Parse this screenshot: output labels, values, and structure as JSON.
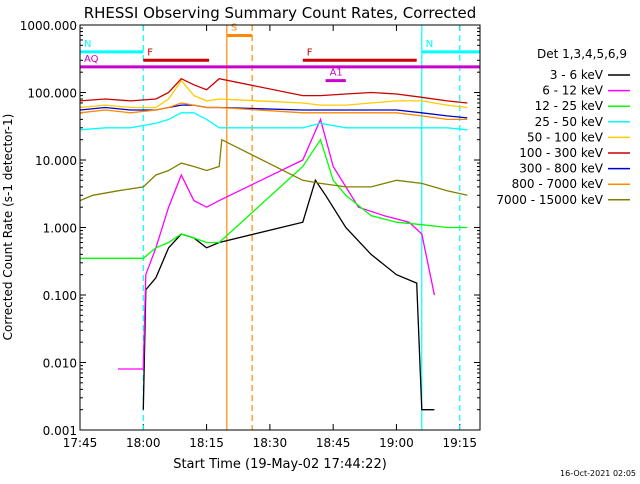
{
  "chart_data": {
    "type": "line",
    "title": "RHESSI Observing Summary Count Rates, Corrected",
    "xlabel": "Start Time (19-May-02 17:44:22)",
    "ylabel": "Corrected Count Rate (s-1 detector-1)",
    "yscale": "log",
    "ylim": [
      0.001,
      1000
    ],
    "xlim_minutes": [
      17.75,
      19.33
    ],
    "x_ticks": [
      "17:45",
      "18:00",
      "18:15",
      "18:30",
      "18:45",
      "19:00",
      "19:15"
    ],
    "y_ticks": [
      "1000.000",
      "100.000",
      "10.000",
      "1.000",
      "0.100",
      "0.010",
      "0.001"
    ],
    "legend_title": "Det 1,3,4,5,6,9",
    "legend_placement": "right",
    "footer_date": "16-Oct-2021 02:05",
    "series": [
      {
        "name": "3 - 6 keV",
        "color": "#000000",
        "points": [
          [
            18.0,
            0.002
          ],
          [
            18.01,
            0.12
          ],
          [
            18.05,
            0.18
          ],
          [
            18.1,
            0.5
          ],
          [
            18.15,
            0.8
          ],
          [
            18.2,
            0.7
          ],
          [
            18.25,
            0.5
          ],
          [
            18.3,
            0.6
          ],
          [
            18.63,
            1.2
          ],
          [
            18.68,
            5.0
          ],
          [
            18.72,
            3.0
          ],
          [
            18.8,
            1.0
          ],
          [
            18.9,
            0.4
          ],
          [
            19.0,
            0.2
          ],
          [
            19.08,
            0.15
          ],
          [
            19.1,
            0.002
          ],
          [
            19.15,
            0.002
          ]
        ]
      },
      {
        "name": "6 - 12 keV",
        "color": "#ff00ff",
        "points": [
          [
            17.9,
            0.008
          ],
          [
            18.0,
            0.008
          ],
          [
            18.01,
            0.2
          ],
          [
            18.05,
            0.5
          ],
          [
            18.1,
            2.0
          ],
          [
            18.15,
            6.0
          ],
          [
            18.2,
            2.5
          ],
          [
            18.25,
            2.0
          ],
          [
            18.3,
            2.5
          ],
          [
            18.63,
            10
          ],
          [
            18.7,
            40
          ],
          [
            18.75,
            8
          ],
          [
            18.85,
            2.0
          ],
          [
            18.95,
            1.5
          ],
          [
            19.05,
            1.2
          ],
          [
            19.1,
            0.8
          ],
          [
            19.15,
            0.1
          ]
        ]
      },
      {
        "name": "12 - 25 keV",
        "color": "#00ff00",
        "points": [
          [
            17.75,
            0.35
          ],
          [
            17.85,
            0.35
          ],
          [
            17.95,
            0.35
          ],
          [
            18.0,
            0.35
          ],
          [
            18.05,
            0.5
          ],
          [
            18.1,
            0.6
          ],
          [
            18.15,
            0.8
          ],
          [
            18.2,
            0.7
          ],
          [
            18.25,
            0.6
          ],
          [
            18.3,
            0.6
          ],
          [
            18.63,
            8
          ],
          [
            18.7,
            20
          ],
          [
            18.75,
            5
          ],
          [
            18.8,
            3
          ],
          [
            18.9,
            1.5
          ],
          [
            19.0,
            1.2
          ],
          [
            19.1,
            1.1
          ],
          [
            19.2,
            1.0
          ],
          [
            19.28,
            1.0
          ]
        ]
      },
      {
        "name": "25 - 50 keV",
        "color": "#00ffff",
        "points": [
          [
            17.75,
            28
          ],
          [
            17.85,
            30
          ],
          [
            17.95,
            30
          ],
          [
            18.05,
            35
          ],
          [
            18.1,
            40
          ],
          [
            18.15,
            50
          ],
          [
            18.2,
            50
          ],
          [
            18.25,
            40
          ],
          [
            18.3,
            30
          ],
          [
            18.63,
            30
          ],
          [
            18.7,
            35
          ],
          [
            18.8,
            30
          ],
          [
            18.9,
            30
          ],
          [
            19.0,
            30
          ],
          [
            19.1,
            30
          ],
          [
            19.2,
            30
          ],
          [
            19.28,
            28
          ]
        ]
      },
      {
        "name": "50 - 100 keV",
        "color": "#ffcc00",
        "points": [
          [
            17.75,
            60
          ],
          [
            17.85,
            65
          ],
          [
            17.95,
            60
          ],
          [
            18.05,
            60
          ],
          [
            18.1,
            80
          ],
          [
            18.15,
            150
          ],
          [
            18.2,
            90
          ],
          [
            18.25,
            75
          ],
          [
            18.3,
            80
          ],
          [
            18.63,
            70
          ],
          [
            18.7,
            65
          ],
          [
            18.8,
            65
          ],
          [
            18.9,
            70
          ],
          [
            19.0,
            75
          ],
          [
            19.1,
            75
          ],
          [
            19.2,
            65
          ],
          [
            19.28,
            60
          ]
        ]
      },
      {
        "name": "100 - 300 keV",
        "color": "#cc0000",
        "points": [
          [
            17.75,
            75
          ],
          [
            17.85,
            80
          ],
          [
            17.95,
            75
          ],
          [
            18.05,
            80
          ],
          [
            18.1,
            100
          ],
          [
            18.15,
            160
          ],
          [
            18.2,
            130
          ],
          [
            18.25,
            110
          ],
          [
            18.3,
            160
          ],
          [
            18.63,
            90
          ],
          [
            18.7,
            90
          ],
          [
            18.8,
            95
          ],
          [
            18.9,
            100
          ],
          [
            19.0,
            95
          ],
          [
            19.1,
            85
          ],
          [
            19.2,
            75
          ],
          [
            19.28,
            70
          ]
        ]
      },
      {
        "name": "300 - 800 keV",
        "color": "#0000cc",
        "points": [
          [
            17.75,
            55
          ],
          [
            17.85,
            60
          ],
          [
            17.95,
            55
          ],
          [
            18.05,
            55
          ],
          [
            18.1,
            60
          ],
          [
            18.15,
            65
          ],
          [
            18.2,
            65
          ],
          [
            18.25,
            60
          ],
          [
            18.3,
            60
          ],
          [
            18.63,
            55
          ],
          [
            18.7,
            55
          ],
          [
            18.8,
            55
          ],
          [
            18.9,
            55
          ],
          [
            19.0,
            55
          ],
          [
            19.1,
            50
          ],
          [
            19.2,
            45
          ],
          [
            19.28,
            42
          ]
        ]
      },
      {
        "name": "800 - 7000 keV",
        "color": "#ff8800",
        "points": [
          [
            17.75,
            50
          ],
          [
            17.85,
            55
          ],
          [
            17.95,
            50
          ],
          [
            18.05,
            55
          ],
          [
            18.1,
            60
          ],
          [
            18.15,
            70
          ],
          [
            18.2,
            65
          ],
          [
            18.25,
            60
          ],
          [
            18.3,
            60
          ],
          [
            18.63,
            50
          ],
          [
            18.7,
            50
          ],
          [
            18.8,
            50
          ],
          [
            18.9,
            50
          ],
          [
            19.0,
            50
          ],
          [
            19.1,
            45
          ],
          [
            19.2,
            40
          ],
          [
            19.28,
            40
          ]
        ]
      },
      {
        "name": "7000 - 15000 keV",
        "color": "#808000",
        "points": [
          [
            17.75,
            2.5
          ],
          [
            17.8,
            3.0
          ],
          [
            17.9,
            3.5
          ],
          [
            18.0,
            4.0
          ],
          [
            18.05,
            6.0
          ],
          [
            18.1,
            7.0
          ],
          [
            18.15,
            9.0
          ],
          [
            18.2,
            8.0
          ],
          [
            18.25,
            7.0
          ],
          [
            18.3,
            8.0
          ],
          [
            18.31,
            20
          ],
          [
            18.63,
            5
          ],
          [
            18.7,
            4.5
          ],
          [
            18.8,
            4.0
          ],
          [
            18.9,
            4.0
          ],
          [
            19.0,
            5.0
          ],
          [
            19.1,
            4.5
          ],
          [
            19.2,
            3.5
          ],
          [
            19.28,
            3.0
          ]
        ]
      }
    ],
    "annotations": [
      {
        "label": "N",
        "color": "#00ffff",
        "y": 400,
        "from": 17.75,
        "to": 18.0
      },
      {
        "label": "N",
        "color": "#00ffff",
        "y": 400,
        "from": 19.1,
        "to": 19.33
      },
      {
        "label": "F",
        "color": "#cc0000",
        "y": 300,
        "from": 18.0,
        "to": 18.26
      },
      {
        "label": "F",
        "color": "#cc0000",
        "y": 300,
        "from": 18.63,
        "to": 19.08
      },
      {
        "label": "S",
        "color": "#ff8800",
        "y": 700,
        "from": 18.33,
        "to": 18.43
      },
      {
        "label": "AQ",
        "color": "#cc00cc",
        "y": 240,
        "from": 17.75,
        "to": 19.33
      },
      {
        "label": "A1",
        "color": "#cc00cc",
        "y": 150,
        "from": 18.72,
        "to": 18.8
      }
    ],
    "vertical_markers": [
      {
        "x": 18.0,
        "color": "#00ffff",
        "style": "dashed"
      },
      {
        "x": 19.1,
        "color": "#00ffff",
        "style": "solid"
      },
      {
        "x": 19.25,
        "color": "#00ffff",
        "style": "dashed"
      },
      {
        "x": 18.33,
        "color": "#ff8800",
        "style": "solid"
      },
      {
        "x": 18.43,
        "color": "#ff8800",
        "style": "dashed"
      }
    ]
  }
}
